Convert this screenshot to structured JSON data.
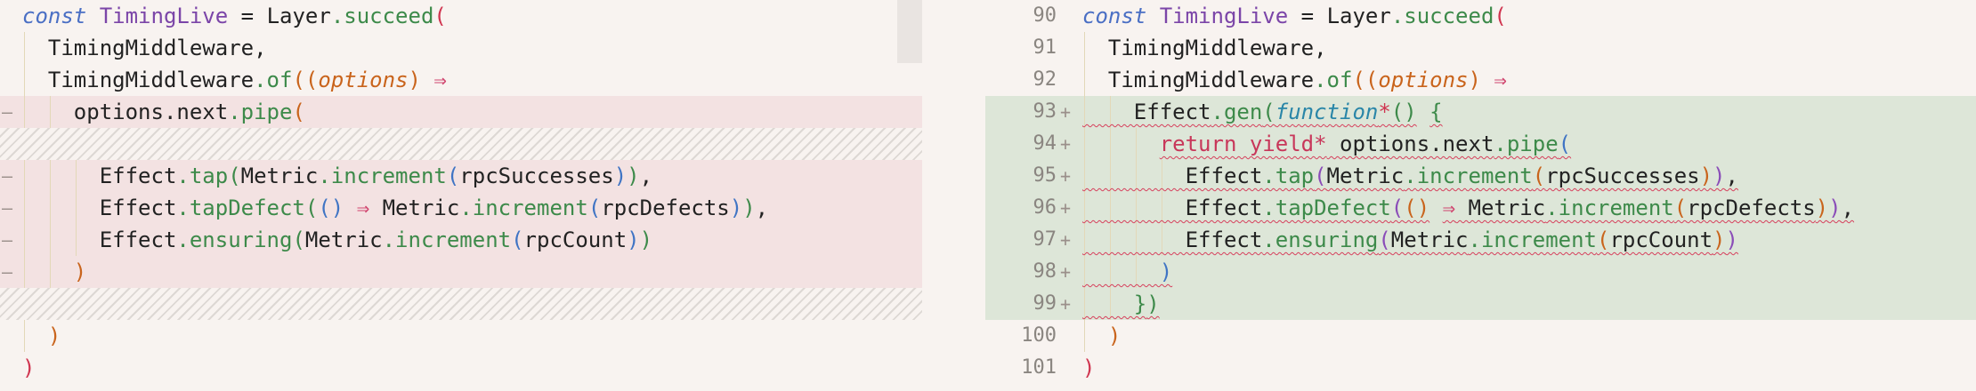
{
  "left": {
    "rows": [
      {
        "kind": "context",
        "tokens": [
          [
            "const",
            "#4a6fc4",
            true
          ],
          [
            " ",
            "#222222"
          ],
          [
            "TimingLive",
            "#7b45a8"
          ],
          [
            " = ",
            "#222222"
          ],
          [
            "Layer",
            "#222222"
          ],
          [
            ".succeed",
            "#3d8a4a"
          ],
          [
            "(",
            "#d0344f"
          ]
        ]
      },
      {
        "kind": "context",
        "tokens": [
          [
            "  TimingMiddleware,",
            "#222222"
          ]
        ]
      },
      {
        "kind": "context",
        "tokens": [
          [
            "  TimingMiddleware",
            "#222222"
          ],
          [
            ".of",
            "#3d8a4a"
          ],
          [
            "((",
            "#c9641c"
          ],
          [
            "options",
            "#c9641c",
            true
          ],
          [
            ") ",
            "#c9641c"
          ],
          [
            "⇒",
            "#d0446e"
          ]
        ]
      },
      {
        "kind": "deleted",
        "marker": "—",
        "tokens": [
          [
            "    options.next",
            "#222222"
          ],
          [
            ".pipe",
            "#3d8a4a"
          ],
          [
            "(",
            "#c9641c"
          ]
        ]
      },
      {
        "kind": "filler"
      },
      {
        "kind": "deleted",
        "marker": "—",
        "tokens": [
          [
            "      Effect",
            "#222222"
          ],
          [
            ".tap",
            "#3d8a4a"
          ],
          [
            "(",
            "#3d8a4a"
          ],
          [
            "Metric",
            "#222222"
          ],
          [
            ".increment",
            "#3d8a4a"
          ],
          [
            "(",
            "#3f74c4"
          ],
          [
            "rpcSuccesses",
            "#222222"
          ],
          [
            ")",
            "#3f74c4"
          ],
          [
            ")",
            "#3d8a4a"
          ],
          [
            ",",
            "#222222"
          ]
        ]
      },
      {
        "kind": "deleted",
        "marker": "—",
        "tokens": [
          [
            "      Effect",
            "#222222"
          ],
          [
            ".tapDefect",
            "#3d8a4a"
          ],
          [
            "(",
            "#3d8a4a"
          ],
          [
            "()",
            "#3f74c4"
          ],
          [
            " ",
            "#222222"
          ],
          [
            "⇒",
            "#d0446e"
          ],
          [
            " Metric",
            "#222222"
          ],
          [
            ".increment",
            "#3d8a4a"
          ],
          [
            "(",
            "#3f74c4"
          ],
          [
            "rpcDefects",
            "#222222"
          ],
          [
            ")",
            "#3f74c4"
          ],
          [
            ")",
            "#3d8a4a"
          ],
          [
            ",",
            "#222222"
          ]
        ]
      },
      {
        "kind": "deleted",
        "marker": "—",
        "tokens": [
          [
            "      Effect",
            "#222222"
          ],
          [
            ".ensuring",
            "#3d8a4a"
          ],
          [
            "(",
            "#3d8a4a"
          ],
          [
            "Metric",
            "#222222"
          ],
          [
            ".increment",
            "#3d8a4a"
          ],
          [
            "(",
            "#3f74c4"
          ],
          [
            "rpcCount",
            "#222222"
          ],
          [
            ")",
            "#3f74c4"
          ],
          [
            ")",
            "#3d8a4a"
          ]
        ]
      },
      {
        "kind": "deleted",
        "marker": "—",
        "tokens": [
          [
            "    )",
            "#c9641c"
          ]
        ]
      },
      {
        "kind": "filler"
      },
      {
        "kind": "context",
        "tokens": [
          [
            "  )",
            "#c9641c"
          ]
        ]
      },
      {
        "kind": "context",
        "tokens": [
          [
            ")",
            "#d0344f"
          ]
        ]
      }
    ]
  },
  "right": {
    "rows": [
      {
        "kind": "context",
        "number": "90",
        "tokens": [
          [
            "const",
            "#4a6fc4",
            true
          ],
          [
            " ",
            "#222222"
          ],
          [
            "TimingLive",
            "#7b45a8"
          ],
          [
            " = ",
            "#222222"
          ],
          [
            "Layer",
            "#222222"
          ],
          [
            ".succeed",
            "#3d8a4a"
          ],
          [
            "(",
            "#d0344f"
          ]
        ]
      },
      {
        "kind": "context",
        "number": "91",
        "tokens": [
          [
            "  TimingMiddleware,",
            "#222222"
          ]
        ]
      },
      {
        "kind": "context",
        "number": "92",
        "tokens": [
          [
            "  TimingMiddleware",
            "#222222"
          ],
          [
            ".of",
            "#3d8a4a"
          ],
          [
            "((",
            "#c9641c"
          ],
          [
            "options",
            "#c9641c",
            true
          ],
          [
            ") ",
            "#c9641c"
          ],
          [
            "⇒",
            "#d0446e"
          ]
        ]
      },
      {
        "kind": "added",
        "number": "93",
        "marker": "+",
        "tokens": [
          [
            "    Effect",
            "#222222"
          ],
          [
            ".gen",
            "#3d8a4a"
          ],
          [
            "(",
            "#3d8a4a"
          ],
          [
            "function",
            "#2a86a8",
            true
          ],
          [
            "*",
            "#d0344f"
          ],
          [
            "()",
            "#3d8a4a"
          ],
          [
            " ",
            "#222222"
          ],
          [
            "{",
            "#3d8a4a"
          ]
        ]
      },
      {
        "kind": "added",
        "number": "94",
        "marker": "+",
        "tokens": [
          [
            "      ",
            "#222222"
          ],
          [
            "return yield*",
            "#c8375a"
          ],
          [
            " options.next",
            "#222222"
          ],
          [
            ".pipe",
            "#3d8a4a"
          ],
          [
            "(",
            "#3f74c4"
          ]
        ]
      },
      {
        "kind": "added",
        "number": "95",
        "marker": "+",
        "tokens": [
          [
            "        Effect",
            "#222222"
          ],
          [
            ".tap",
            "#3d8a4a"
          ],
          [
            "(",
            "#8a4cb8"
          ],
          [
            "Metric",
            "#222222"
          ],
          [
            ".increment",
            "#3d8a4a"
          ],
          [
            "(",
            "#c9641c"
          ],
          [
            "rpcSuccesses",
            "#222222"
          ],
          [
            ")",
            "#c9641c"
          ],
          [
            ")",
            "#8a4cb8"
          ],
          [
            ",",
            "#222222"
          ]
        ]
      },
      {
        "kind": "added",
        "number": "96",
        "marker": "+",
        "tokens": [
          [
            "        Effect",
            "#222222"
          ],
          [
            ".tapDefect",
            "#3d8a4a"
          ],
          [
            "(",
            "#8a4cb8"
          ],
          [
            "()",
            "#c9641c"
          ],
          [
            " ",
            "#222222"
          ],
          [
            "⇒",
            "#d0446e"
          ],
          [
            " Metric",
            "#222222"
          ],
          [
            ".increment",
            "#3d8a4a"
          ],
          [
            "(",
            "#c9641c"
          ],
          [
            "rpcDefects",
            "#222222"
          ],
          [
            ")",
            "#c9641c"
          ],
          [
            ")",
            "#8a4cb8"
          ],
          [
            ",",
            "#222222"
          ]
        ]
      },
      {
        "kind": "added",
        "number": "97",
        "marker": "+",
        "tokens": [
          [
            "        Effect",
            "#222222"
          ],
          [
            ".ensuring",
            "#3d8a4a"
          ],
          [
            "(",
            "#8a4cb8"
          ],
          [
            "Metric",
            "#222222"
          ],
          [
            ".increment",
            "#3d8a4a"
          ],
          [
            "(",
            "#c9641c"
          ],
          [
            "rpcCount",
            "#222222"
          ],
          [
            ")",
            "#c9641c"
          ],
          [
            ")",
            "#8a4cb8"
          ]
        ]
      },
      {
        "kind": "added",
        "number": "98",
        "marker": "+",
        "tokens": [
          [
            "      )",
            "#3f74c4"
          ]
        ]
      },
      {
        "kind": "added",
        "number": "99",
        "marker": "+",
        "tokens": [
          [
            "    }",
            "#3d8a4a"
          ],
          [
            ")",
            "#3d8a4a"
          ]
        ]
      },
      {
        "kind": "context",
        "number": "100",
        "tokens": [
          [
            "  )",
            "#c9641c"
          ]
        ]
      },
      {
        "kind": "context",
        "number": "101",
        "tokens": [
          [
            ")",
            "#d0344f"
          ]
        ]
      }
    ]
  }
}
